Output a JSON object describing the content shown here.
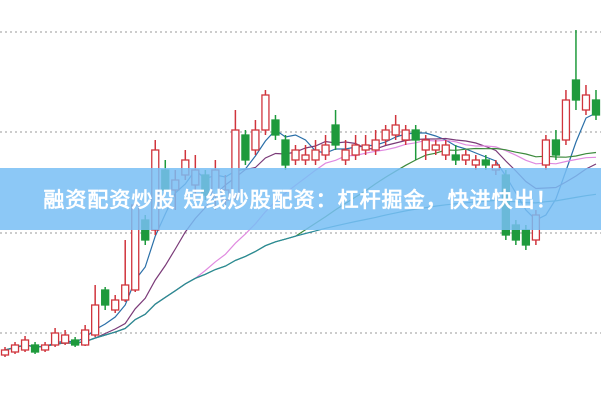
{
  "banner": {
    "title": "融资配资炒股 短线炒股配资：杠杆掘金，快进快出！",
    "background": "#78bef5"
  },
  "chart_data": {
    "type": "candlestick",
    "title": "",
    "xlabel": "",
    "ylabel": "",
    "ylim": [
      0,
      40
    ],
    "grid": true,
    "grid_style": "dotted horizontal",
    "up_color": "#d0343c",
    "down_color": "#1e9a3c",
    "candles": [
      [
        4.5,
        5.0,
        5.3,
        4.3
      ],
      [
        4.8,
        5.5,
        5.8,
        4.6
      ],
      [
        5.0,
        6.0,
        6.4,
        4.8
      ],
      [
        5.5,
        4.8,
        5.8,
        4.6
      ],
      [
        5.0,
        5.5,
        5.8,
        4.8
      ],
      [
        5.5,
        6.7,
        7.2,
        5.3
      ],
      [
        5.7,
        6.5,
        7.0,
        5.5
      ],
      [
        6.0,
        5.5,
        6.3,
        5.3
      ],
      [
        5.5,
        7.0,
        7.5,
        5.4
      ],
      [
        6.5,
        9.5,
        11.5,
        6.3
      ],
      [
        11.0,
        9.5,
        11.3,
        9.0
      ],
      [
        9.0,
        10.0,
        10.5,
        8.7
      ],
      [
        10.0,
        11.5,
        16.0,
        9.8
      ],
      [
        11.0,
        19.5,
        20.0,
        10.8
      ],
      [
        18.0,
        16.0,
        18.5,
        15.5
      ],
      [
        17.0,
        25.0,
        26.0,
        16.5
      ],
      [
        23.0,
        21.0,
        24.0,
        20.5
      ],
      [
        21.0,
        22.0,
        23.0,
        19.0
      ],
      [
        22.5,
        24.0,
        25.0,
        22.0
      ],
      [
        21.5,
        23.0,
        24.5,
        20.0
      ],
      [
        22.5,
        20.5,
        23.0,
        20.0
      ],
      [
        20.5,
        23.0,
        24.0,
        19.0
      ],
      [
        20.0,
        21.0,
        22.5,
        19.5
      ],
      [
        20.5,
        27.0,
        29.0,
        20.0
      ],
      [
        26.5,
        24.0,
        27.0,
        23.5
      ],
      [
        25.0,
        27.0,
        28.0,
        24.5
      ],
      [
        27.0,
        30.5,
        31.0,
        26.5
      ],
      [
        28.0,
        26.5,
        28.5,
        26.0
      ],
      [
        26.0,
        23.5,
        26.5,
        23.0
      ],
      [
        24.0,
        25.0,
        25.5,
        23.5
      ],
      [
        24.0,
        24.5,
        25.5,
        23.5
      ],
      [
        24.0,
        25.0,
        26.0,
        23.5
      ],
      [
        24.5,
        25.5,
        26.5,
        24.0
      ],
      [
        27.5,
        25.5,
        29.0,
        25.0
      ],
      [
        24.0,
        25.0,
        26.0,
        23.5
      ],
      [
        24.5,
        25.5,
        26.5,
        24.0
      ],
      [
        25.0,
        25.5,
        26.5,
        24.5
      ],
      [
        25.0,
        26.0,
        27.0,
        24.5
      ],
      [
        26.0,
        27.0,
        27.5,
        25.5
      ],
      [
        26.5,
        27.5,
        28.5,
        26.0
      ],
      [
        26.0,
        27.0,
        27.5,
        25.5
      ],
      [
        27.0,
        26.0,
        27.5,
        24.0
      ],
      [
        25.0,
        26.0,
        26.5,
        24.0
      ],
      [
        25.0,
        25.5,
        26.0,
        24.5
      ],
      [
        24.5,
        25.5,
        26.0,
        24.0
      ],
      [
        24.5,
        24.0,
        25.5,
        23.5
      ],
      [
        24.0,
        24.5,
        25.0,
        23.5
      ],
      [
        23.5,
        24.0,
        24.5,
        23.0
      ],
      [
        24.0,
        23.5,
        24.5,
        23.0
      ],
      [
        23.0,
        23.5,
        24.0,
        22.5
      ],
      [
        22.5,
        16.5,
        23.0,
        16.0
      ],
      [
        17.5,
        16.0,
        18.0,
        15.5
      ],
      [
        17.0,
        15.5,
        17.5,
        15.0
      ],
      [
        16.0,
        18.5,
        19.0,
        15.5
      ],
      [
        23.5,
        26.0,
        26.5,
        23.0
      ],
      [
        26.0,
        24.5,
        27.0,
        24.0
      ],
      [
        26.0,
        30.0,
        31.0,
        25.5
      ],
      [
        32.0,
        30.0,
        37.0,
        29.0
      ],
      [
        29.0,
        30.5,
        31.5,
        28.5
      ],
      [
        30.0,
        28.5,
        31.0,
        28.0
      ]
    ],
    "candle_fields": [
      "open",
      "close",
      "high",
      "low"
    ],
    "moving_averages": [
      {
        "period": 5,
        "color": "#2a6fa8"
      },
      {
        "period": 10,
        "color": "#7a3a78"
      },
      {
        "period": 20,
        "color": "#e08ae0"
      },
      {
        "period": 30,
        "color": "#3c8a3c"
      },
      {
        "period": 60,
        "color": "#2a8a9a"
      }
    ]
  }
}
